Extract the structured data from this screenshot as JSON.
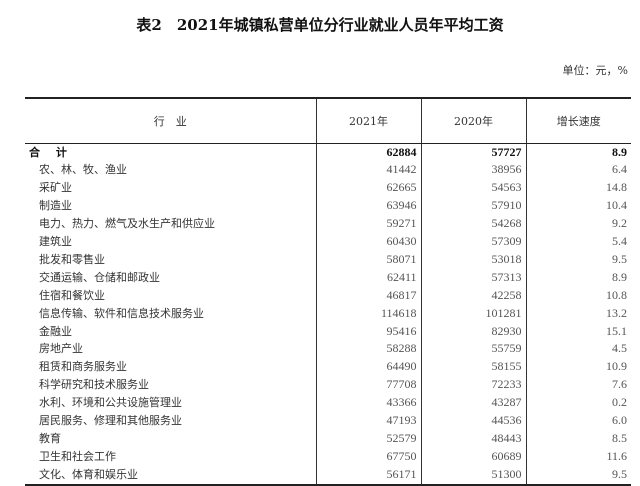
{
  "title": "表2　2021年城镇私营单位分行业就业人员年平均工资",
  "unit": "单位：元，%",
  "headers": [
    "行　业",
    "2021年",
    "2020年",
    "增长速度"
  ],
  "rows": [
    [
      "合 计",
      "62884",
      "57727",
      "8.9"
    ],
    [
      "农、林、牧、渔业",
      "41442",
      "38956",
      "6.4"
    ],
    [
      "采矿业",
      "62665",
      "54563",
      "14.8"
    ],
    [
      "制造业",
      "63946",
      "57910",
      "10.4"
    ],
    [
      "电力、热力、燃气及水生产和供应业",
      "59271",
      "54268",
      "9.2"
    ],
    [
      "建筑业",
      "60430",
      "57309",
      "5.4"
    ],
    [
      "批发和零售业",
      "58071",
      "53018",
      "9.5"
    ],
    [
      "交通运输、仓储和邮政业",
      "62411",
      "57313",
      "8.9"
    ],
    [
      "住宿和餐饮业",
      "46817",
      "42258",
      "10.8"
    ],
    [
      "信息传输、软件和信息技术服务业",
      "114618",
      "101281",
      "13.2"
    ],
    [
      "金融业",
      "95416",
      "82930",
      "15.1"
    ],
    [
      "房地产业",
      "58288",
      "55759",
      "4.5"
    ],
    [
      "租赁和商务服务业",
      "64490",
      "58155",
      "10.9"
    ],
    [
      "科学研究和技术服务业",
      "77708",
      "72233",
      "7.6"
    ],
    [
      "水利、环境和公共设施管理业",
      "43366",
      "43287",
      "0.2"
    ],
    [
      "居民服务、修理和其他服务业",
      "47193",
      "44536",
      "6.0"
    ],
    [
      "教育",
      "52579",
      "48443",
      "8.5"
    ],
    [
      "卫生和社会工作",
      "67750",
      "60689",
      "11.6"
    ],
    [
      "文化、体育和娱乐业",
      "56171",
      "51300",
      "9.5"
    ]
  ]
}
